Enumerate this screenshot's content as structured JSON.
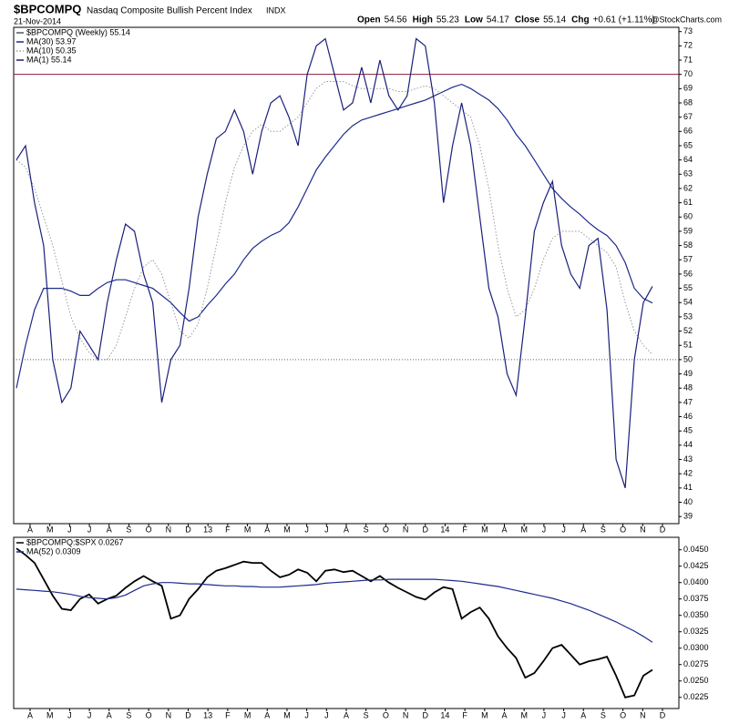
{
  "header": {
    "symbol": "$BPCOMPQ",
    "name": "Nasdaq Composite Bullish Percent Index",
    "exchange": "INDX",
    "date": "21-Nov-2014",
    "stats": [
      {
        "label": "Open",
        "value": "54.56"
      },
      {
        "label": "High",
        "value": "55.23"
      },
      {
        "label": "Low",
        "value": "54.17"
      },
      {
        "label": "Close",
        "value": "55.14"
      },
      {
        "label": "Chg",
        "value": "+0.61 (+1.11%)"
      }
    ],
    "watermark": "@StockCharts.com"
  },
  "chart_data": [
    {
      "type": "line",
      "x_labels": [
        "A",
        "M",
        "J",
        "J",
        "A",
        "S",
        "O",
        "N",
        "D",
        "13",
        "F",
        "M",
        "A",
        "M",
        "J",
        "J",
        "A",
        "S",
        "O",
        "N",
        "D",
        "14",
        "F",
        "M",
        "A",
        "M",
        "J",
        "J",
        "A",
        "S",
        "O",
        "N",
        "D"
      ],
      "ylim": [
        38.5,
        73.3
      ],
      "yticks": [
        39,
        40,
        41,
        42,
        43,
        44,
        45,
        46,
        47,
        48,
        49,
        50,
        51,
        52,
        53,
        54,
        55,
        56,
        57,
        58,
        59,
        60,
        61,
        62,
        63,
        64,
        65,
        66,
        67,
        68,
        69,
        70,
        71,
        72,
        73
      ],
      "grid": false,
      "reference_lines": [
        {
          "value": 70,
          "color": "#8b1a3a",
          "style": "solid"
        },
        {
          "value": 50,
          "color": "#666666",
          "style": "dotted"
        }
      ],
      "series": [
        {
          "name": "MA(30) 53.97",
          "color": "#1c2a8c",
          "style": "solid",
          "values": [
            48,
            51,
            53.5,
            55,
            55,
            55,
            54.8,
            54.5,
            54.5,
            55,
            55.4,
            55.6,
            55.6,
            55.4,
            55.2,
            55,
            54.5,
            54,
            53.3,
            52.7,
            53,
            53.8,
            54.5,
            55.3,
            56,
            57,
            57.8,
            58.3,
            58.7,
            59,
            59.6,
            60.7,
            62,
            63.3,
            64.2,
            65,
            65.8,
            66.4,
            66.8,
            67,
            67.2,
            67.4,
            67.6,
            67.8,
            68,
            68.2,
            68.5,
            68.8,
            69.1,
            69.3,
            69,
            68.6,
            68.2,
            67.6,
            66.8,
            65.8,
            65,
            64,
            63,
            62,
            61.3,
            60.7,
            60.2,
            59.6,
            59.1,
            58.7,
            58,
            56.8,
            55,
            54.3,
            53.97
          ]
        },
        {
          "name": "MA(10) 50.35",
          "color": "#9a9a9a",
          "style": "dotted",
          "values": [
            64,
            63.5,
            62,
            60,
            58,
            55.5,
            53,
            51.5,
            50.5,
            50,
            50,
            51,
            53,
            55,
            56.5,
            57,
            56,
            54,
            52,
            51.5,
            52.5,
            55,
            58,
            61,
            63.5,
            65,
            66,
            66.5,
            66,
            66,
            66.5,
            67,
            68,
            69,
            69.5,
            69.5,
            69.5,
            69.2,
            69,
            69,
            69,
            69,
            68.8,
            68.8,
            69,
            69.2,
            69,
            68.5,
            68,
            67.5,
            67,
            65,
            62,
            58,
            55,
            53,
            53.5,
            55,
            57,
            58.5,
            59,
            59,
            59,
            58.5,
            58,
            57.5,
            56.5,
            54,
            52,
            51,
            50.35
          ]
        },
        {
          "name": "MA(1) 55.14",
          "color": "#1a1f7a",
          "style": "solid",
          "values": [
            64,
            65,
            61,
            58,
            50,
            47,
            48,
            52,
            51,
            50,
            54,
            57,
            59.5,
            59,
            56,
            54,
            47,
            50,
            51,
            55,
            60,
            63,
            65.5,
            66,
            67.5,
            66,
            63,
            66,
            68,
            68.5,
            67,
            65,
            70,
            72,
            72.5,
            70,
            67.5,
            68,
            70.5,
            68,
            71,
            68.5,
            67.5,
            68.5,
            72.5,
            72,
            68,
            61,
            65,
            68,
            65,
            60,
            55,
            53,
            49,
            47.5,
            53,
            59,
            61,
            62.5,
            58,
            56,
            55,
            58,
            58.5,
            53.5,
            43,
            41,
            50,
            54,
            55.14
          ]
        }
      ],
      "legend_title": "$BPCOMPQ (Weekly) 55.14"
    },
    {
      "type": "line",
      "ylim": [
        0.0208,
        0.0469
      ],
      "yticks": [
        {
          "value": 0.0225,
          "label": "0.0225"
        },
        {
          "value": 0.025,
          "label": "0.0250"
        },
        {
          "value": 0.0275,
          "label": "0.0275"
        },
        {
          "value": 0.03,
          "label": "0.0300"
        },
        {
          "value": 0.0325,
          "label": "0.0325"
        },
        {
          "value": 0.035,
          "label": "0.0350"
        },
        {
          "value": 0.0375,
          "label": "0.0375"
        },
        {
          "value": 0.04,
          "label": "0.0400"
        },
        {
          "value": 0.0425,
          "label": "0.0425"
        },
        {
          "value": 0.045,
          "label": "0.0450"
        }
      ],
      "grid": false,
      "series": [
        {
          "name": "$BPCOMPQ:$SPX 0.0267",
          "color": "#000000",
          "style": "solid",
          "values": [
            0.0452,
            0.0442,
            0.043,
            0.0405,
            0.038,
            0.036,
            0.0358,
            0.0375,
            0.0382,
            0.0368,
            0.0375,
            0.038,
            0.0392,
            0.0402,
            0.041,
            0.0402,
            0.0395,
            0.0345,
            0.035,
            0.0375,
            0.039,
            0.0408,
            0.0418,
            0.0422,
            0.0427,
            0.0432,
            0.043,
            0.043,
            0.0418,
            0.0408,
            0.0412,
            0.042,
            0.0415,
            0.0402,
            0.0418,
            0.042,
            0.0416,
            0.0418,
            0.041,
            0.0402,
            0.041,
            0.04,
            0.0392,
            0.0385,
            0.0378,
            0.0374,
            0.0385,
            0.0393,
            0.039,
            0.0345,
            0.0355,
            0.0362,
            0.0345,
            0.0318,
            0.03,
            0.0285,
            0.0255,
            0.0262,
            0.028,
            0.03,
            0.0305,
            0.029,
            0.0275,
            0.028,
            0.0283,
            0.0287,
            0.0258,
            0.0225,
            0.0228,
            0.0258,
            0.0267
          ]
        },
        {
          "name": "MA(52) 0.0309",
          "color": "#1c2a8c",
          "style": "solid",
          "values": [
            0.039,
            0.0389,
            0.0388,
            0.0387,
            0.0386,
            0.0384,
            0.0382,
            0.0379,
            0.0377,
            0.0376,
            0.0375,
            0.0377,
            0.0381,
            0.0388,
            0.0395,
            0.0398,
            0.04,
            0.04,
            0.0399,
            0.0398,
            0.0398,
            0.0397,
            0.0396,
            0.0395,
            0.0395,
            0.0394,
            0.0394,
            0.0393,
            0.0393,
            0.0393,
            0.0394,
            0.0395,
            0.0396,
            0.0397,
            0.0399,
            0.04,
            0.0401,
            0.0402,
            0.0403,
            0.0404,
            0.0404,
            0.0405,
            0.0405,
            0.0405,
            0.0405,
            0.0405,
            0.0405,
            0.0404,
            0.0403,
            0.0402,
            0.04,
            0.0398,
            0.0396,
            0.0394,
            0.0391,
            0.0388,
            0.0385,
            0.0382,
            0.0379,
            0.0376,
            0.0372,
            0.0368,
            0.0363,
            0.0358,
            0.0352,
            0.0346,
            0.034,
            0.0333,
            0.0326,
            0.0318,
            0.0309
          ]
        }
      ]
    }
  ]
}
